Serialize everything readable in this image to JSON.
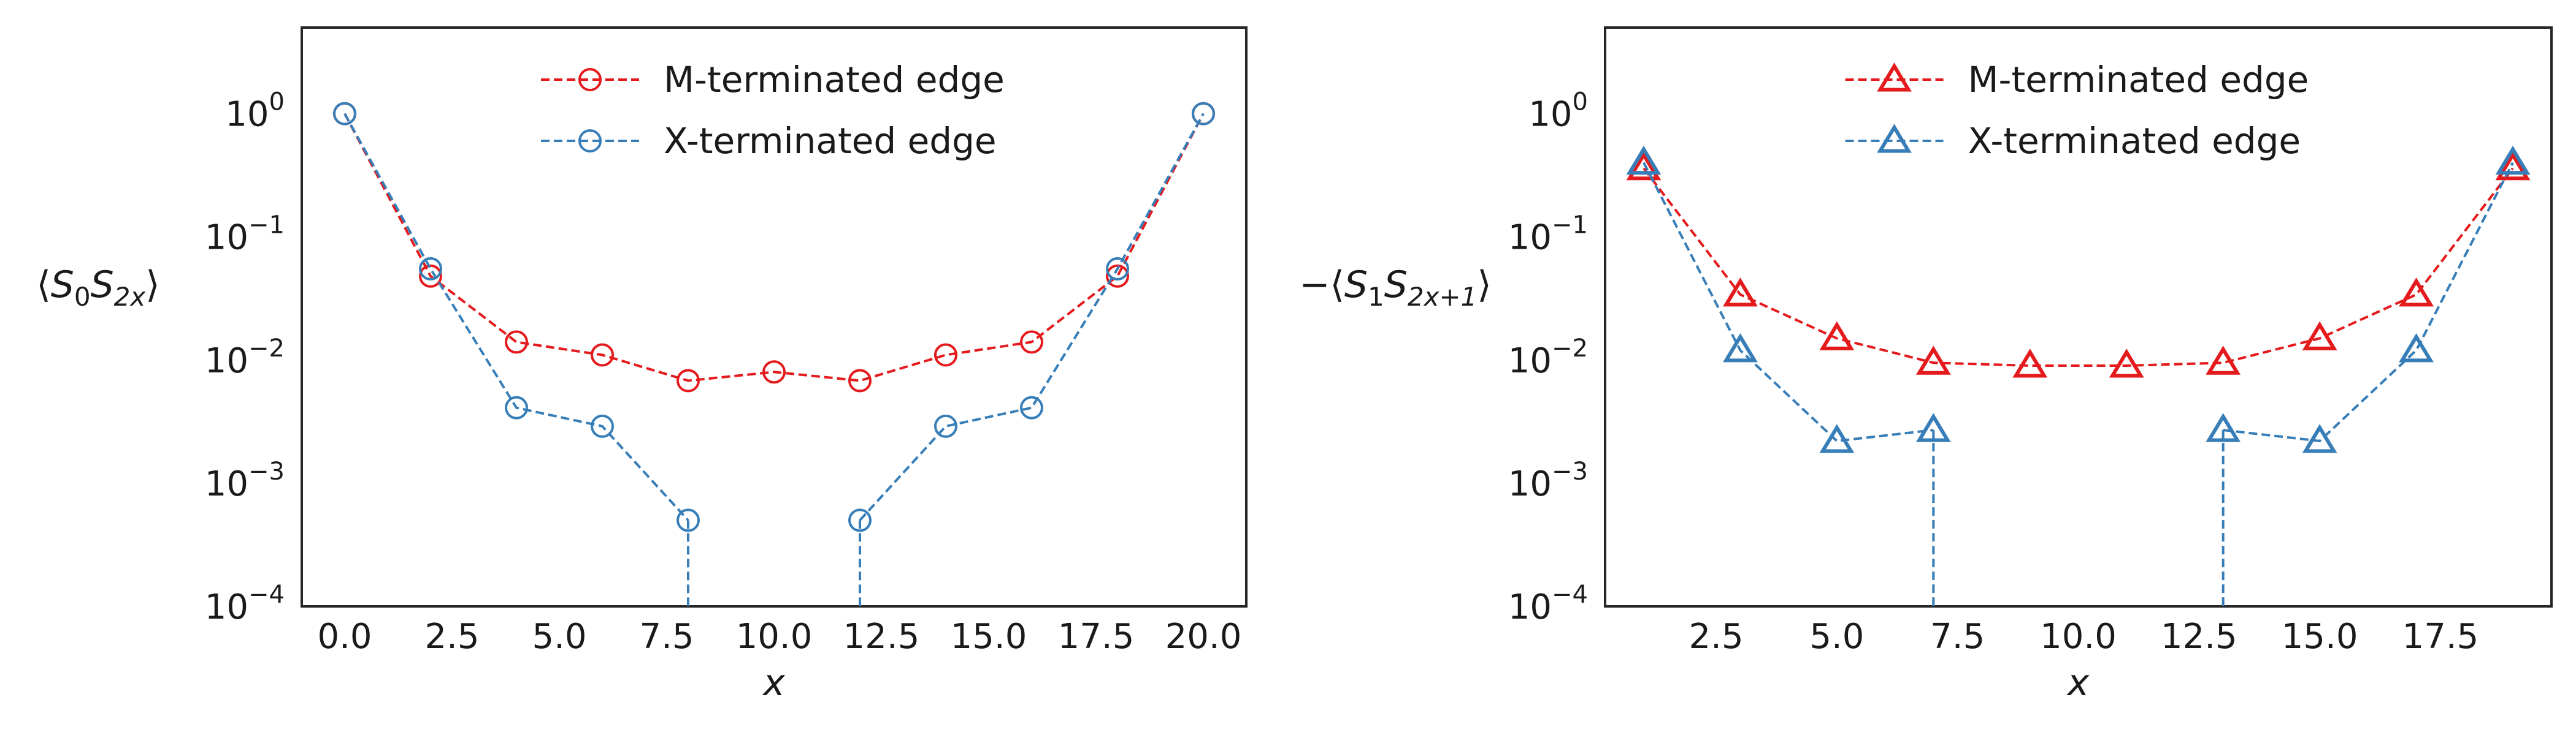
{
  "figure": {
    "background": "#ffffff"
  },
  "chart_data": [
    {
      "type": "line",
      "yscale": "log",
      "xlabel": "x",
      "ylabel": "⟨S0S2x⟩",
      "xlim": [
        -1,
        21
      ],
      "ylim": [
        0.0001,
        5
      ],
      "xticks": [
        0.0,
        2.5,
        5.0,
        7.5,
        10.0,
        12.5,
        15.0,
        17.5,
        20.0
      ],
      "xtick_labels": [
        "0.0",
        "2.5",
        "5.0",
        "7.5",
        "10.0",
        "12.5",
        "15.0",
        "17.5",
        "20.0"
      ],
      "yticks": [
        0.0001,
        0.001,
        0.01,
        0.1,
        1
      ],
      "ytick_exponents": [
        "−4",
        "−3",
        "−2",
        "−1",
        "0"
      ],
      "grid": false,
      "legend_position": "top-center",
      "marker": "circle",
      "series": [
        {
          "name": "M-terminated edge",
          "color": "#e41a1c",
          "x": [
            0,
            2,
            4,
            6,
            8,
            10,
            12,
            14,
            16,
            18,
            20
          ],
          "y": [
            1.0,
            0.048,
            0.014,
            0.011,
            0.0068,
            0.008,
            0.0068,
            0.011,
            0.014,
            0.048,
            1.0
          ]
        },
        {
          "name": "X-terminated edge",
          "color": "#377eb8",
          "x": [
            0,
            2,
            4,
            6,
            8,
            12,
            14,
            16,
            18,
            20
          ],
          "y": [
            1.0,
            0.055,
            0.0041,
            0.0029,
            0.0005,
            0.0005,
            0.0029,
            0.0041,
            0.055,
            1.0
          ],
          "drops_below_axis_at_x": [
            8,
            12
          ]
        }
      ]
    },
    {
      "type": "line",
      "yscale": "log",
      "xlabel": "x",
      "ylabel": "−⟨S1S2x+1⟩",
      "xlim": [
        0.2,
        19.8
      ],
      "ylim": [
        0.0001,
        5
      ],
      "xticks": [
        2.5,
        5.0,
        7.5,
        10.0,
        12.5,
        15.0,
        17.5
      ],
      "xtick_labels": [
        "2.5",
        "5.0",
        "7.5",
        "10.0",
        "12.5",
        "15.0",
        "17.5"
      ],
      "yticks": [
        0.0001,
        0.001,
        0.01,
        0.1,
        1
      ],
      "ytick_exponents": [
        "−4",
        "−3",
        "−2",
        "−1",
        "0"
      ],
      "grid": false,
      "legend_position": "top-center",
      "marker": "triangle",
      "series": [
        {
          "name": "M-terminated edge",
          "color": "#e41a1c",
          "x": [
            1,
            3,
            5,
            7,
            9,
            11,
            13,
            15,
            17,
            19
          ],
          "y": [
            0.36,
            0.034,
            0.015,
            0.0095,
            0.009,
            0.009,
            0.0095,
            0.015,
            0.034,
            0.36
          ]
        },
        {
          "name": "X-terminated edge",
          "color": "#377eb8",
          "x": [
            1,
            3,
            5,
            7,
            13,
            15,
            17,
            19
          ],
          "y": [
            0.4,
            0.012,
            0.0022,
            0.0027,
            0.0027,
            0.0022,
            0.012,
            0.4
          ],
          "drops_below_axis_at_x": [
            7,
            13
          ]
        }
      ]
    }
  ]
}
